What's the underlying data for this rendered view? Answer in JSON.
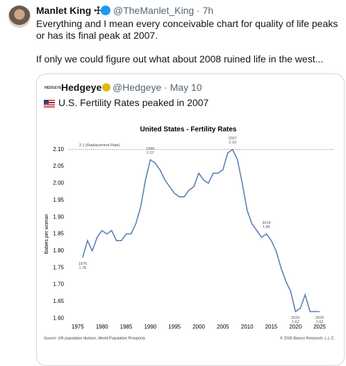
{
  "tweet": {
    "name": "Manlet King ☩",
    "handle": "@TheManlet_King · 7h",
    "paragraphs": [
      "Everything and I mean every conceivable chart for quality of life peaks or has its final peak at 2007.",
      "If only we could figure out what about 2008 ruined life in the west..."
    ]
  },
  "quote": {
    "logo": "HEDGEYE",
    "name": "Hedgeye",
    "handle": "@Hedgeye · May 10",
    "text": "U.S. Fertility Rates peaked in 2007"
  },
  "chart_data": {
    "type": "line",
    "title": "United States - Fertility Rates",
    "y_label": "Babies per woman",
    "source": "Source: UN population division, World Population Prospects",
    "credit": "© 2026 Bianco Research, L.L.C.",
    "x": [
      1976,
      1977,
      1978,
      1979,
      1980,
      1981,
      1982,
      1983,
      1984,
      1985,
      1986,
      1987,
      1988,
      1989,
      1990,
      1991,
      1992,
      1993,
      1994,
      1995,
      1996,
      1997,
      1998,
      1999,
      2000,
      2001,
      2002,
      2003,
      2004,
      2005,
      2006,
      2007,
      2008,
      2009,
      2010,
      2011,
      2012,
      2013,
      2014,
      2015,
      2016,
      2017,
      2018,
      2019,
      2020,
      2021,
      2022,
      2023,
      2024,
      2025
    ],
    "series": [
      {
        "name": "Fertility rate",
        "color": "#5a82b4",
        "values": [
          1.78,
          1.83,
          1.8,
          1.84,
          1.86,
          1.85,
          1.86,
          1.83,
          1.83,
          1.85,
          1.85,
          1.88,
          1.93,
          2.01,
          2.07,
          2.06,
          2.04,
          2.01,
          1.99,
          1.97,
          1.96,
          1.96,
          1.98,
          1.99,
          2.03,
          2.01,
          2.0,
          2.03,
          2.03,
          2.04,
          2.09,
          2.1,
          2.07,
          2.0,
          1.92,
          1.88,
          1.86,
          1.84,
          1.85,
          1.83,
          1.8,
          1.75,
          1.71,
          1.68,
          1.62,
          1.63,
          1.67,
          1.62,
          1.62,
          1.62
        ]
      }
    ],
    "xlim": [
      1973,
      2028
    ],
    "xticks": [
      1975,
      1980,
      1985,
      1990,
      1995,
      2000,
      2005,
      2010,
      2015,
      2020,
      2025
    ],
    "ylim": [
      1.58,
      2.12
    ],
    "yticks": [
      {
        "value": 1.6,
        "label": "1.60"
      },
      1.65,
      {
        "value": 1.7,
        "label": "1.70"
      },
      1.75,
      {
        "value": 1.8,
        "label": "1.80"
      },
      1.85,
      {
        "value": 1.9,
        "label": "1.90"
      },
      1.95,
      {
        "value": 2.0,
        "label": "2.00"
      },
      2.05,
      {
        "value": 2.1,
        "label": "2.10"
      }
    ],
    "reference_line": {
      "value": 2.1,
      "label": "2.1 (Replacement Rate)"
    },
    "annotations": [
      {
        "year": "1976",
        "value": "1.78",
        "position": "below"
      },
      {
        "year": "1990",
        "value": "2.07",
        "position": "above"
      },
      {
        "year": "2007",
        "value": "2.10",
        "position": "above"
      },
      {
        "year": "2014",
        "value": "1.85",
        "position": "above"
      },
      {
        "year": "2020",
        "value": "1.62",
        "position": "below"
      },
      {
        "year": "2025",
        "value": "1.62",
        "position": "below"
      }
    ]
  }
}
